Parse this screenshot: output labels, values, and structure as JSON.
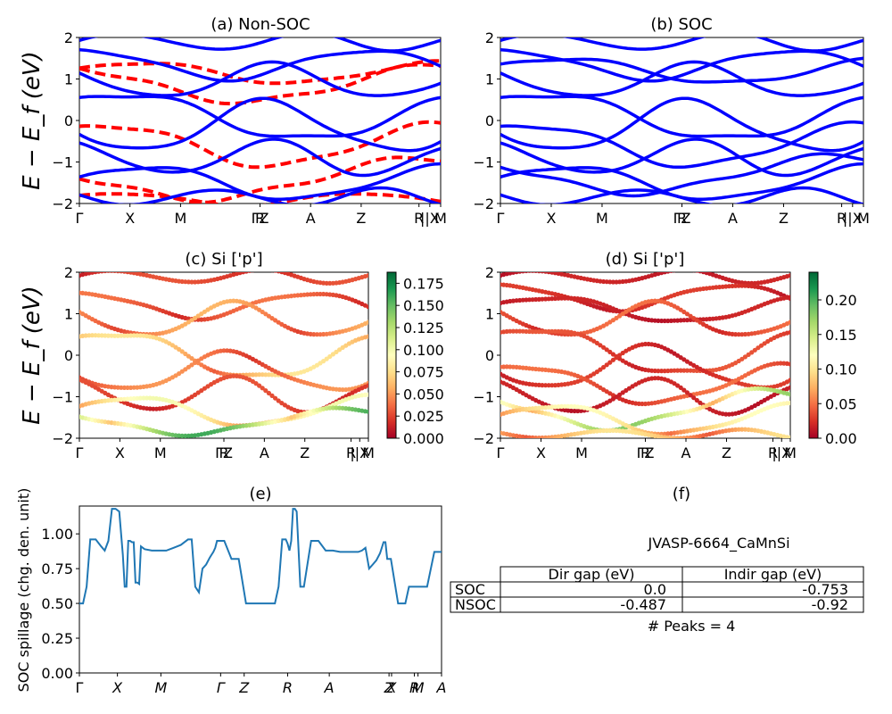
{
  "figure": {
    "panel_a_title": "(a) Non-SOC",
    "panel_b_title": "(b) SOC",
    "panel_c_title": "(c)  Si ['p']",
    "panel_d_title": "(d) Si ['p']",
    "panel_e_title": "(e)",
    "panel_f_title": "(f)",
    "energy_ylabel": "E − E_f (eV)",
    "spillage_ylabel": "SOC spillage (chg. den. unit)"
  },
  "colors": {
    "non_soc_bands": "#ff0000",
    "soc_bands": "#0000ff",
    "spillage_line": "#1f77b4",
    "colormap": [
      "#a50026",
      "#d73027",
      "#f46d43",
      "#fdae61",
      "#fee08b",
      "#ffffbf",
      "#d9ef8b",
      "#a6d96a",
      "#66bd63",
      "#1a9850",
      "#006837"
    ]
  },
  "chart_data": [
    {
      "type": "line",
      "panel": "a",
      "title": "(a) Non-SOC",
      "ylabel": "E − E_f (eV)",
      "ylim": [
        -2,
        2
      ],
      "yticks": [
        "−2",
        "−1",
        "0",
        "1",
        "2"
      ],
      "kpath_labels": [
        "Γ",
        "X",
        "M",
        "ΓZ",
        "R",
        "A",
        "Z",
        "R",
        "||X",
        "M"
      ],
      "series": [
        {
          "style": "dashed",
          "color": "#ff0000",
          "bands": [
            {
              "E0": 1.15,
              "amp": 0.25,
              "freq": 1.2,
              "phase": 0.3
            },
            {
              "E0": 0.9,
              "amp": 0.45,
              "freq": 0.9,
              "phase": 2.1
            },
            {
              "E0": -0.6,
              "amp": 0.5,
              "freq": 1.1,
              "phase": 1.0
            },
            {
              "E0": -1.4,
              "amp": 0.5,
              "freq": 0.8,
              "phase": 3.0
            },
            {
              "E0": -1.9,
              "amp": 0.15,
              "freq": 1.5,
              "phase": 0.5
            }
          ]
        },
        {
          "style": "solid",
          "color": "#0000ff",
          "bands": [
            {
              "E0": 1.9,
              "amp": 0.2,
              "freq": 2.0,
              "phase": 0.0
            },
            {
              "E0": 1.35,
              "amp": 0.35,
              "freq": 1.3,
              "phase": 1.4
            },
            {
              "E0": 0.95,
              "amp": 0.4,
              "freq": 1.6,
              "phase": 2.5
            },
            {
              "E0": 0.1,
              "amp": 0.55,
              "freq": 1.0,
              "phase": 0.8
            },
            {
              "E0": -0.15,
              "amp": 0.6,
              "freq": 1.4,
              "phase": 3.3
            },
            {
              "E0": -0.9,
              "amp": 0.4,
              "freq": 1.8,
              "phase": 1.9
            },
            {
              "E0": -1.5,
              "amp": 0.4,
              "freq": 1.2,
              "phase": 0.2
            },
            {
              "E0": -1.85,
              "amp": 0.2,
              "freq": 2.2,
              "phase": 2.7
            }
          ]
        }
      ]
    },
    {
      "type": "line",
      "panel": "b",
      "title": "(b) SOC",
      "ylim": [
        -2,
        2
      ],
      "yticks": [
        "−2",
        "−1",
        "0",
        "1",
        "2"
      ],
      "kpath_labels": [
        "Γ",
        "X",
        "M",
        "ΓZ",
        "R",
        "A",
        "Z",
        "R",
        "||X",
        "M"
      ],
      "series": [
        {
          "style": "solid",
          "color": "#0000ff",
          "bands": [
            {
              "E0": 1.9,
              "amp": 0.2,
              "freq": 2.0,
              "phase": 0.0
            },
            {
              "E0": 1.35,
              "amp": 0.35,
              "freq": 1.3,
              "phase": 1.4
            },
            {
              "E0": 1.2,
              "amp": 0.3,
              "freq": 1.1,
              "phase": 0.4
            },
            {
              "E0": 0.95,
              "amp": 0.4,
              "freq": 1.6,
              "phase": 2.5
            },
            {
              "E0": 0.1,
              "amp": 0.55,
              "freq": 1.0,
              "phase": 0.8
            },
            {
              "E0": -0.15,
              "amp": 0.6,
              "freq": 1.4,
              "phase": 3.3
            },
            {
              "E0": -0.6,
              "amp": 0.5,
              "freq": 1.1,
              "phase": 1.0
            },
            {
              "E0": -0.9,
              "amp": 0.4,
              "freq": 1.8,
              "phase": 1.9
            },
            {
              "E0": -1.3,
              "amp": 0.45,
              "freq": 0.9,
              "phase": 2.6
            },
            {
              "E0": -1.5,
              "amp": 0.4,
              "freq": 1.2,
              "phase": 0.2
            },
            {
              "E0": -1.85,
              "amp": 0.2,
              "freq": 2.2,
              "phase": 2.7
            }
          ]
        }
      ]
    },
    {
      "type": "scatter",
      "panel": "c",
      "title": "(c)  Si ['p']",
      "ylabel": "E − E_f (eV)",
      "ylim": [
        -2,
        2
      ],
      "yticks": [
        "−2",
        "−1",
        "0",
        "1",
        "2"
      ],
      "kpath_labels": [
        "Γ",
        "X",
        "M",
        "ΓZ",
        "R",
        "A",
        "Z",
        "R",
        "||X",
        "M"
      ],
      "colorbar": {
        "min": 0.0,
        "max": 0.1875,
        "ticks": [
          "0.000",
          "0.025",
          "0.050",
          "0.075",
          "0.100",
          "0.125",
          "0.150",
          "0.175"
        ],
        "values": [
          0,
          0.025,
          0.05,
          0.075,
          0.1,
          0.125,
          0.15,
          0.175
        ]
      },
      "bands": [
        {
          "E0": 1.9,
          "amp": 0.15,
          "freq": 2.0,
          "phase": 0.0,
          "w": 0.03
        },
        {
          "E0": 1.2,
          "amp": 0.3,
          "freq": 1.3,
          "phase": 1.4,
          "w": 0.04
        },
        {
          "E0": 0.85,
          "amp": 0.4,
          "freq": 1.6,
          "phase": 2.5,
          "w": 0.06
        },
        {
          "E0": 0.0,
          "amp": 0.55,
          "freq": 1.0,
          "phase": 0.8,
          "w": 0.08
        },
        {
          "E0": -0.4,
          "amp": 0.45,
          "freq": 1.4,
          "phase": 3.3,
          "w": 0.05
        },
        {
          "E0": -0.95,
          "amp": 0.4,
          "freq": 1.8,
          "phase": 1.9,
          "w": 0.03
        },
        {
          "E0": -1.35,
          "amp": 0.35,
          "freq": 1.2,
          "phase": 0.2,
          "w": 0.1
        },
        {
          "E0": -1.6,
          "amp": 0.3,
          "freq": 0.9,
          "phase": 2.6,
          "w": 0.16
        }
      ]
    },
    {
      "type": "scatter",
      "panel": "d",
      "title": "(d) Si ['p']",
      "ylim": [
        -2,
        2
      ],
      "yticks": [
        "−2",
        "−1",
        "0",
        "1",
        "2"
      ],
      "kpath_labels": [
        "Γ",
        "X",
        "M",
        "ΓZ",
        "R",
        "A",
        "Z",
        "R",
        "||X",
        "M"
      ],
      "colorbar": {
        "min": 0.0,
        "max": 0.24,
        "ticks": [
          "0.00",
          "0.05",
          "0.10",
          "0.15",
          "0.20"
        ],
        "values": [
          0,
          0.05,
          0.1,
          0.15,
          0.2
        ]
      },
      "bands": [
        {
          "E0": 1.9,
          "amp": 0.15,
          "freq": 2.0,
          "phase": 0.0,
          "w": 0.02
        },
        {
          "E0": 1.4,
          "amp": 0.3,
          "freq": 1.3,
          "phase": 1.4,
          "w": 0.03
        },
        {
          "E0": 1.1,
          "amp": 0.3,
          "freq": 1.1,
          "phase": 0.4,
          "w": 0.02
        },
        {
          "E0": 0.85,
          "amp": 0.4,
          "freq": 1.6,
          "phase": 2.5,
          "w": 0.05
        },
        {
          "E0": 0.1,
          "amp": 0.55,
          "freq": 1.0,
          "phase": 0.8,
          "w": 0.04
        },
        {
          "E0": -0.3,
          "amp": 0.5,
          "freq": 1.4,
          "phase": 3.3,
          "w": 0.03
        },
        {
          "E0": -0.7,
          "amp": 0.45,
          "freq": 1.1,
          "phase": 1.0,
          "w": 0.05
        },
        {
          "E0": -1.0,
          "amp": 0.4,
          "freq": 1.8,
          "phase": 1.9,
          "w": 0.02
        },
        {
          "E0": -1.3,
          "amp": 0.45,
          "freq": 0.9,
          "phase": 2.6,
          "w": 0.18
        },
        {
          "E0": -1.55,
          "amp": 0.35,
          "freq": 1.2,
          "phase": 0.2,
          "w": 0.12
        },
        {
          "E0": -1.9,
          "amp": 0.1,
          "freq": 2.2,
          "phase": 2.7,
          "w": 0.1
        }
      ]
    },
    {
      "type": "line",
      "panel": "e",
      "title": "(e)",
      "ylabel": "SOC spillage (chg. den. unit)",
      "ylim": [
        0,
        1.2
      ],
      "yticks": [
        "0.00",
        "0.25",
        "0.50",
        "0.75",
        "1.00"
      ],
      "ytick_values": [
        0,
        0.25,
        0.5,
        0.75,
        1.0
      ],
      "xtick_labels": [
        "Γ",
        "X",
        "M",
        "Γ",
        "Z",
        "R",
        "A",
        "Z",
        "X",
        "R",
        "M",
        "A"
      ],
      "x": [
        0,
        0.01,
        0.02,
        0.03,
        0.045,
        0.06,
        0.07,
        0.08,
        0.09,
        0.1,
        0.11,
        0.12,
        0.125,
        0.13,
        0.135,
        0.14,
        0.145,
        0.15,
        0.155,
        0.16,
        0.165,
        0.17,
        0.18,
        0.2,
        0.22,
        0.24,
        0.26,
        0.28,
        0.3,
        0.31,
        0.32,
        0.33,
        0.34,
        0.35,
        0.36,
        0.365,
        0.37,
        0.375,
        0.38,
        0.4,
        0.42,
        0.44,
        0.46,
        0.48,
        0.5,
        0.51,
        0.52,
        0.53,
        0.54,
        0.55,
        0.56,
        0.57,
        0.575,
        0.58,
        0.585,
        0.59,
        0.595,
        0.6,
        0.605,
        0.61,
        0.62,
        0.64,
        0.66,
        0.68,
        0.7,
        0.72,
        0.74,
        0.76,
        0.77,
        0.78,
        0.79,
        0.8,
        0.81,
        0.82,
        0.83,
        0.835,
        0.84,
        0.845,
        0.85,
        0.86,
        0.88,
        0.9,
        0.91,
        0.92,
        0.94,
        0.96,
        0.98,
        1.0
      ],
      "values": [
        0.5,
        0.5,
        0.62,
        0.96,
        0.96,
        0.91,
        0.88,
        0.95,
        1.18,
        1.18,
        1.16,
        0.85,
        0.62,
        0.62,
        0.95,
        0.95,
        0.94,
        0.94,
        0.65,
        0.65,
        0.64,
        0.91,
        0.89,
        0.88,
        0.88,
        0.88,
        0.9,
        0.92,
        0.96,
        0.96,
        0.62,
        0.58,
        0.75,
        0.78,
        0.83,
        0.85,
        0.87,
        0.9,
        0.95,
        0.95,
        0.82,
        0.82,
        0.5,
        0.5,
        0.5,
        0.5,
        0.5,
        0.5,
        0.5,
        0.62,
        0.96,
        0.96,
        0.93,
        0.88,
        0.95,
        1.18,
        1.18,
        1.16,
        0.9,
        0.62,
        0.62,
        0.95,
        0.95,
        0.88,
        0.88,
        0.87,
        0.87,
        0.87,
        0.87,
        0.88,
        0.9,
        0.75,
        0.78,
        0.81,
        0.86,
        0.9,
        0.94,
        0.94,
        0.82,
        0.82,
        0.5,
        0.5,
        0.62,
        0.62,
        0.62,
        0.62,
        0.87,
        0.87
      ]
    },
    {
      "type": "table",
      "panel": "f",
      "title": "(f)",
      "heading": "JVASP-6664_CaMnSi",
      "columns": [
        "Dir gap (eV)",
        "Indir gap (eV)"
      ],
      "rows": [
        {
          "label": "SOC",
          "values": [
            "0.0",
            "-0.753"
          ]
        },
        {
          "label": "NSOC",
          "values": [
            "-0.487",
            "-0.92"
          ]
        }
      ],
      "footer": "# Peaks = 4"
    }
  ]
}
